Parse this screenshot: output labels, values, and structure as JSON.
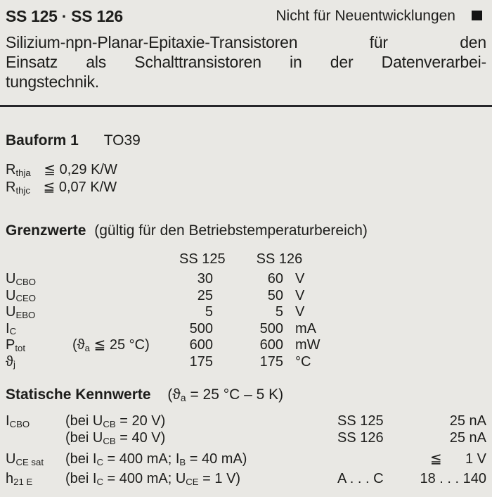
{
  "header": {
    "title": "SS 125 · SS 126",
    "notice": "Nicht für Neuentwicklungen"
  },
  "description": {
    "lines": [
      "Silizium-npn-Planar-Epitaxie-Transistoren für den",
      "Einsatz als Schalttransistoren in der Datenverarbei-",
      "tungstechnik."
    ]
  },
  "bauform": {
    "label": "Bauform 1",
    "value": "TO39"
  },
  "thermal": {
    "rows": [
      {
        "sym_main": "R",
        "sym_sub": "thja",
        "value": "≦ 0,29 K/W"
      },
      {
        "sym_main": "R",
        "sym_sub": "thjc",
        "value": "≦ 0,07 K/W"
      }
    ]
  },
  "grenzwerte": {
    "heading_bold": "Grenzwerte",
    "heading_rest": "(gültig für den Betriebstemperaturbereich)",
    "col1": "SS 125",
    "col2": "SS 126",
    "rows": [
      {
        "sym_main": "U",
        "sym_sub": "CBO",
        "cond_pre": "",
        "cond_sub": "",
        "cond_post": "",
        "v1": "30",
        "v2": "60",
        "unit": "V"
      },
      {
        "sym_main": "U",
        "sym_sub": "CEO",
        "cond_pre": "",
        "cond_sub": "",
        "cond_post": "",
        "v1": "25",
        "v2": "50",
        "unit": "V"
      },
      {
        "sym_main": "U",
        "sym_sub": "EBO",
        "cond_pre": "",
        "cond_sub": "",
        "cond_post": "",
        "v1": "5",
        "v2": "5",
        "unit": "V"
      },
      {
        "sym_main": "I",
        "sym_sub": "C",
        "cond_pre": "",
        "cond_sub": "",
        "cond_post": "",
        "v1": "500",
        "v2": "500",
        "unit": "mA"
      },
      {
        "sym_main": "P",
        "sym_sub": "tot",
        "cond_pre": "(ϑ",
        "cond_sub": "a",
        "cond_post": " ≦ 25 °C)",
        "v1": "600",
        "v2": "600",
        "unit": "mW"
      },
      {
        "sym_main": "ϑ",
        "sym_sub": "j",
        "cond_pre": "",
        "cond_sub": "",
        "cond_post": "",
        "v1": "175",
        "v2": "175",
        "unit": "°C"
      }
    ]
  },
  "statische": {
    "heading_bold": "Statische Kennwerte",
    "heading_pre": "(ϑ",
    "heading_sub": "a",
    "heading_post": " = 25 °C – 5 K)",
    "rows": [
      {
        "sym_main": "I",
        "sym_sub": "CBO",
        "c1": "(bei U",
        "c2": "CB",
        "c3": " = 20 V)",
        "c4": "",
        "c5": "",
        "type": "SS 125",
        "value": "25 nA"
      },
      {
        "sym_main": "",
        "sym_sub": "",
        "c1": "(bei U",
        "c2": "CB",
        "c3": " = 40 V)",
        "c4": "",
        "c5": "",
        "type": "SS 126",
        "value": "25 nA"
      },
      {
        "sym_main": "U",
        "sym_sub": "CE sat",
        "c1": "(bei I",
        "c2": "C",
        "c3": " = 400 mA; I",
        "c4": "B",
        "c5": " = 40 mA)",
        "type": "",
        "value": "≦      1 V"
      },
      {
        "sym_main": "h",
        "sym_sub": "21 E",
        "c1": "(bei I",
        "c2": "C",
        "c3": " = 400 mA; U",
        "c4": "CE",
        "c5": " = 1 V)",
        "type": "A . . . C",
        "value": "18 . . . 140"
      }
    ]
  }
}
